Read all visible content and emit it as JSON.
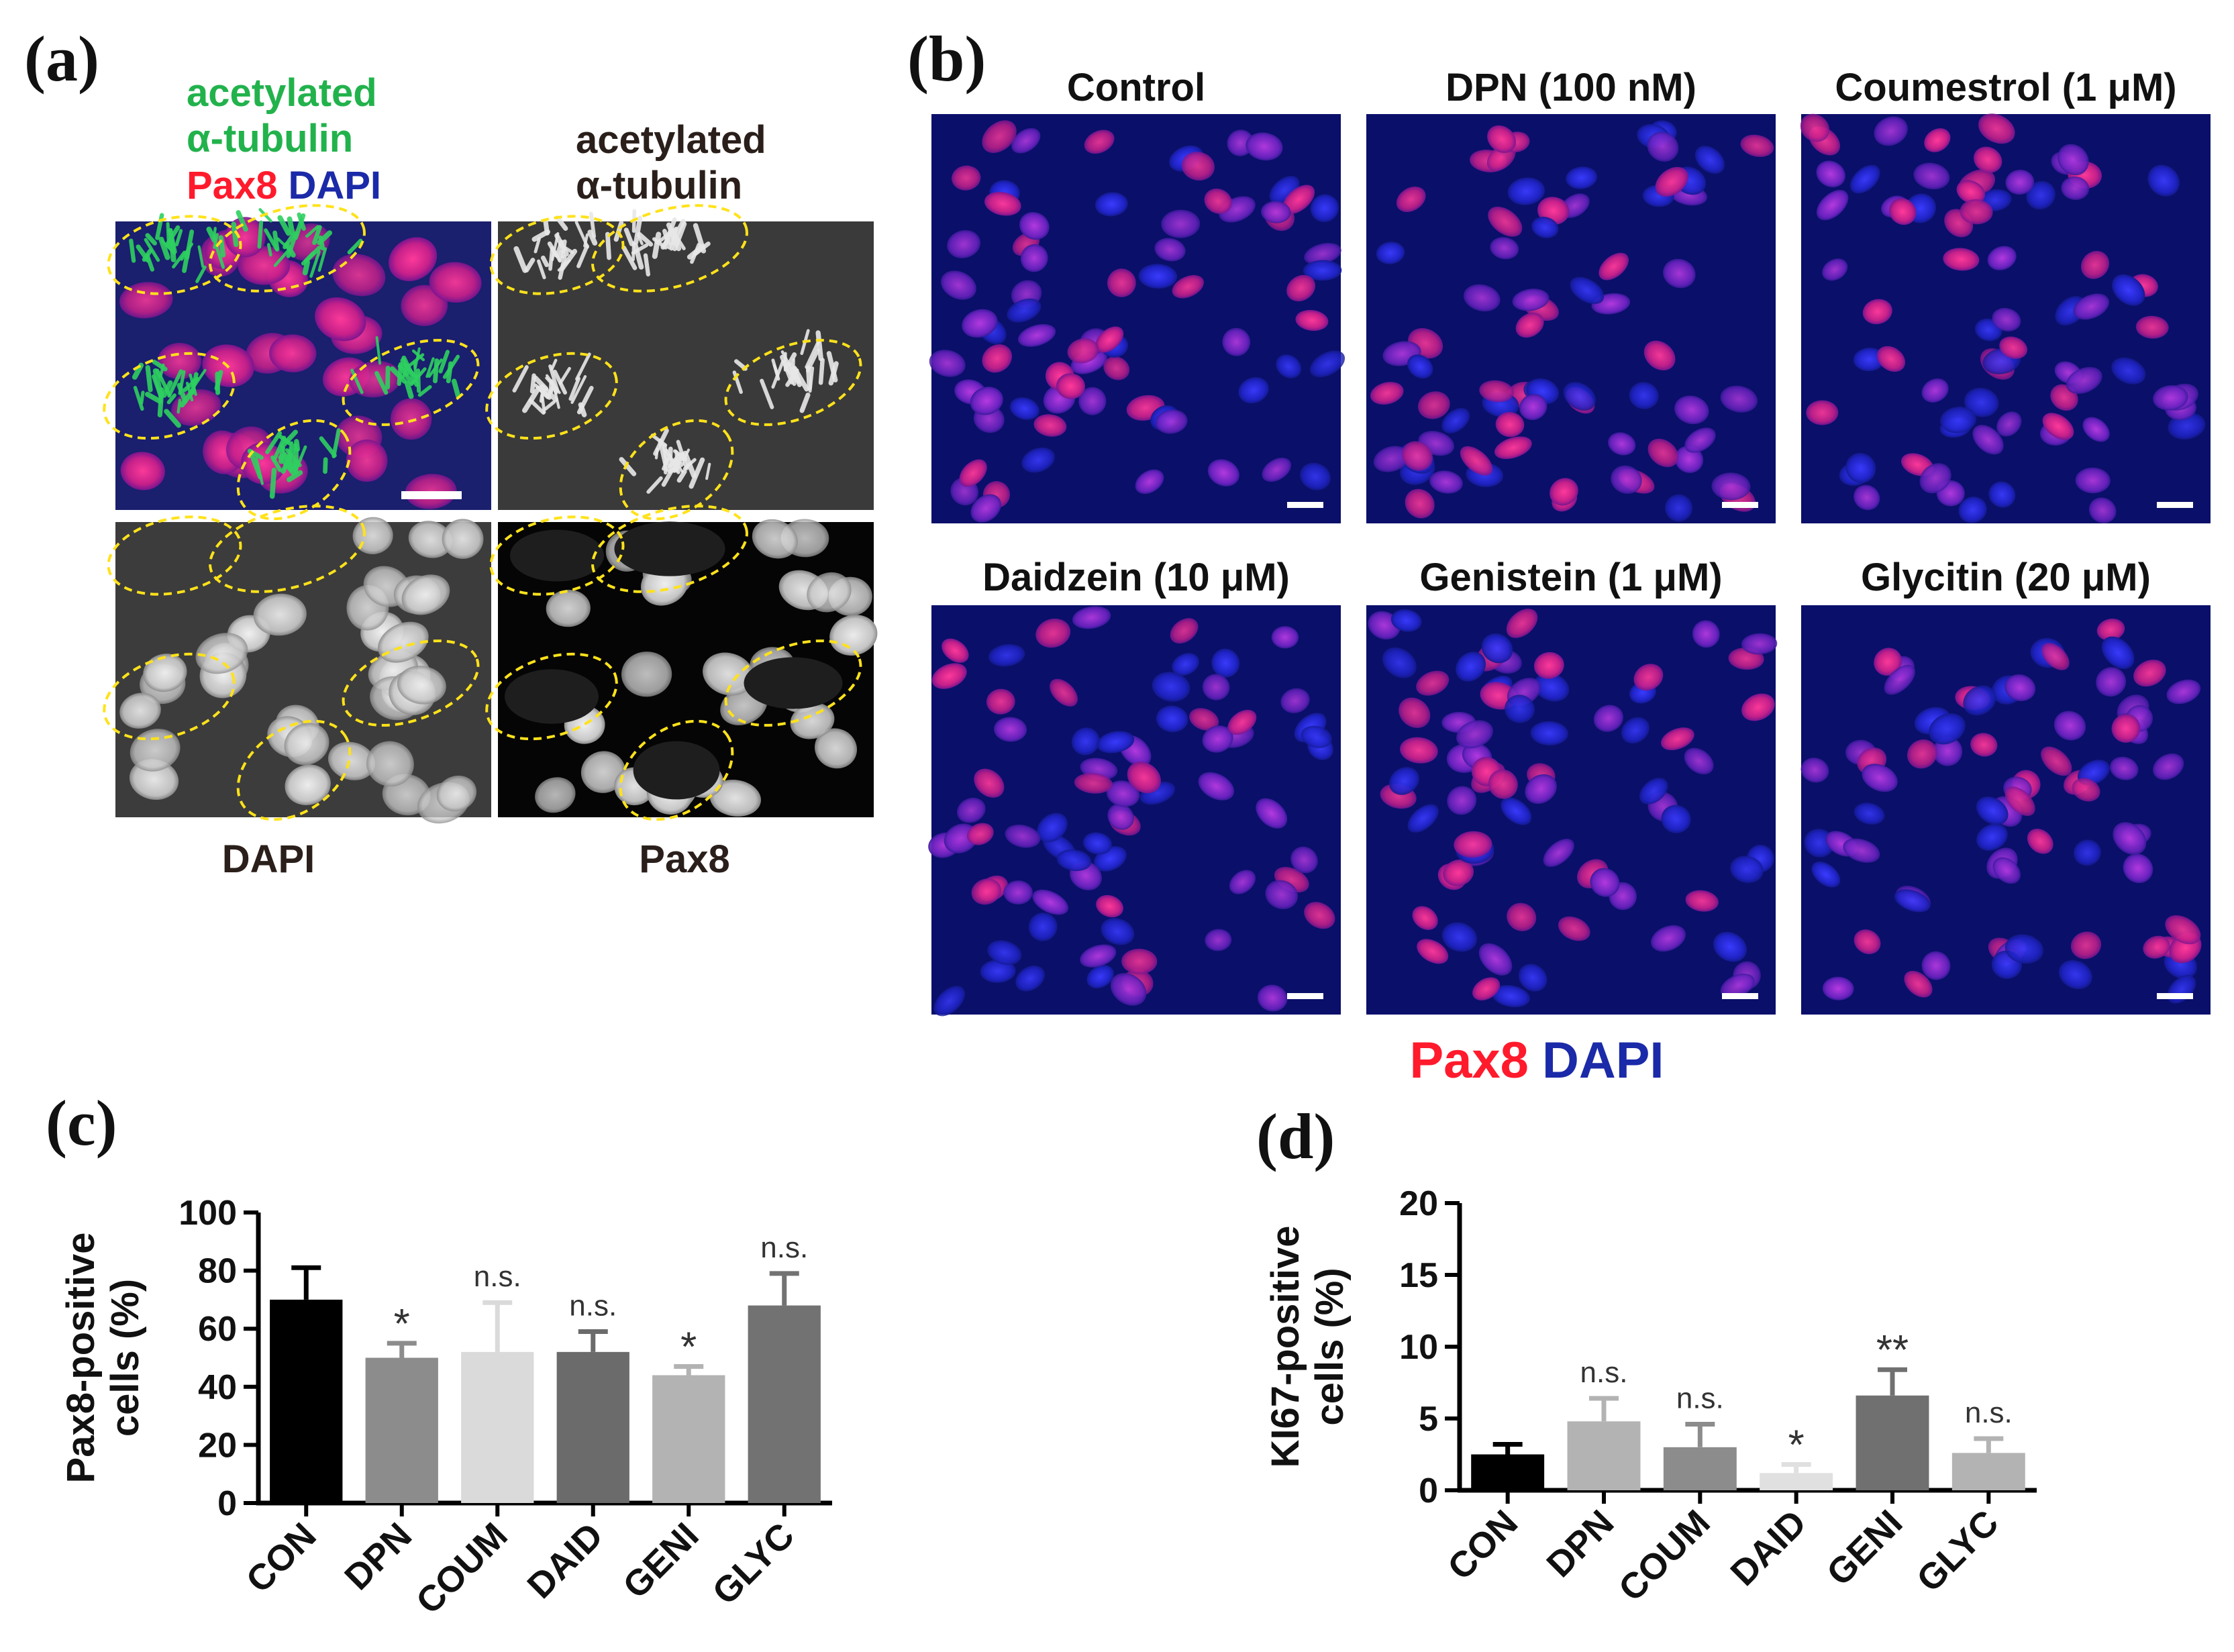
{
  "panel_a": {
    "letter": "(a)",
    "merge_label": {
      "line1": "acetylated",
      "line2": "α-tubulin",
      "pax8": "Pax8",
      "dapi": "DAPI"
    },
    "tubulin_label": {
      "line1": "acetylated",
      "line2": "α-tubulin"
    },
    "bottom_labels": {
      "dapi": "DAPI",
      "pax8": "Pax8"
    }
  },
  "panel_b": {
    "letter": "(b)",
    "images": [
      {
        "title": "Control"
      },
      {
        "title": "DPN (100 nM)"
      },
      {
        "title": "Coumestrol (1 μM)"
      },
      {
        "title": "Daidzein (10 μM)"
      },
      {
        "title": "Genistein (1 μM)"
      },
      {
        "title": "Glycitin (20 μM)"
      }
    ],
    "legend": {
      "pax8": "Pax8",
      "dapi": "DAPI"
    }
  },
  "colors": {
    "green": "#22b24c",
    "red": "#ff1a2c",
    "blue": "#1a2aa8",
    "dark_text": "#2a1f1a"
  },
  "chart_data": [
    {
      "panel": "(c)",
      "type": "bar",
      "title": "",
      "ylabel_line1": "Pax8-positive",
      "ylabel_line2": "cells (%)",
      "xlabel": "",
      "categories": [
        "CON",
        "DPN",
        "COUM",
        "DAID",
        "GENI",
        "GLYC"
      ],
      "values": [
        70,
        50,
        52,
        52,
        44,
        68
      ],
      "errors": [
        11,
        5,
        17,
        7,
        3,
        11
      ],
      "annotations": [
        "",
        "*",
        "n.s.",
        "n.s.",
        "*",
        "n.s."
      ],
      "bar_colors": [
        "#000000",
        "#8c8c8c",
        "#dadada",
        "#6b6b6b",
        "#b3b3b3",
        "#727272"
      ],
      "ylim": [
        0,
        100
      ],
      "yticks": [
        0,
        20,
        40,
        60,
        80,
        100
      ]
    },
    {
      "panel": "(d)",
      "type": "bar",
      "title": "",
      "ylabel_line1": "KI67-positive",
      "ylabel_line2": "cells (%)",
      "xlabel": "",
      "categories": [
        "CON",
        "DPN",
        "COUM",
        "DAID",
        "GENI",
        "GLYC"
      ],
      "values": [
        2.5,
        4.8,
        3.0,
        1.2,
        6.6,
        2.6
      ],
      "errors": [
        0.7,
        1.6,
        1.6,
        0.6,
        1.8,
        1.0
      ],
      "annotations": [
        "",
        "n.s.",
        "n.s.",
        "*",
        "**",
        "n.s."
      ],
      "bar_colors": [
        "#000000",
        "#b3b3b3",
        "#8c8c8c",
        "#e0e0e0",
        "#707070",
        "#b3b3b3"
      ],
      "ylim": [
        0,
        20
      ],
      "yticks": [
        0,
        5,
        10,
        15,
        20
      ]
    }
  ]
}
